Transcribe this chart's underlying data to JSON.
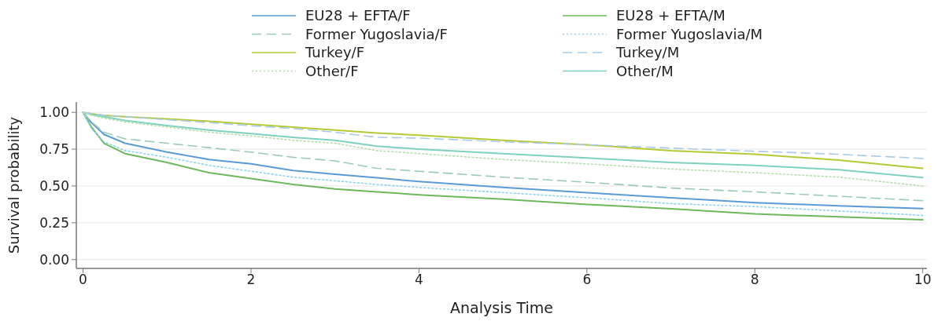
{
  "chart_data": {
    "type": "line",
    "xlabel": "Analysis Time",
    "ylabel": "Survival probability",
    "xlim": [
      -0.08,
      10.05
    ],
    "ylim": [
      -0.06,
      1.07
    ],
    "xticks": [
      0,
      2,
      4,
      6,
      8,
      10
    ],
    "yticks": [
      {
        "value": 0,
        "label": "0.00"
      },
      {
        "value": 0.25,
        "label": "0.25"
      },
      {
        "value": 0.5,
        "label": "0.50"
      },
      {
        "value": 0.75,
        "label": "0.75"
      },
      {
        "value": 1,
        "label": "1.00"
      }
    ],
    "grid": "y",
    "legend": "top",
    "x": [
      0,
      0.1,
      0.25,
      0.5,
      1,
      1.5,
      2,
      2.5,
      3,
      3.5,
      4,
      5,
      6,
      7,
      8,
      9,
      10
    ],
    "series": [
      {
        "name": "EU28 + EFTA/F",
        "color": "#5b9bd5",
        "line_style": "solid",
        "values": [
          1,
          0.93,
          0.85,
          0.79,
          0.73,
          0.68,
          0.65,
          0.605,
          0.58,
          0.555,
          0.53,
          0.49,
          0.455,
          0.42,
          0.387,
          0.365,
          0.346
        ]
      },
      {
        "name": "EU28 + EFTA/M",
        "color": "#6cb85a",
        "line_style": "solid",
        "values": [
          1,
          0.9,
          0.79,
          0.72,
          0.66,
          0.59,
          0.55,
          0.51,
          0.48,
          0.46,
          0.44,
          0.41,
          0.375,
          0.345,
          0.31,
          0.29,
          0.27
        ]
      },
      {
        "name": "Former Yugoslavia/F",
        "color": "#9dcab8",
        "line_style": "dashed",
        "values": [
          1,
          0.935,
          0.865,
          0.82,
          0.79,
          0.76,
          0.73,
          0.695,
          0.67,
          0.62,
          0.6,
          0.56,
          0.525,
          0.486,
          0.46,
          0.43,
          0.4
        ]
      },
      {
        "name": "Former Yugoslavia/M",
        "color": "#8fd3f0",
        "line_style": "dotted",
        "values": [
          1,
          0.89,
          0.8,
          0.74,
          0.695,
          0.64,
          0.6,
          0.56,
          0.535,
          0.51,
          0.49,
          0.455,
          0.42,
          0.38,
          0.36,
          0.33,
          0.3
        ]
      },
      {
        "name": "Turkey/F",
        "color": "#b5c934",
        "line_style": "solid",
        "values": [
          1,
          0.99,
          0.98,
          0.97,
          0.955,
          0.94,
          0.92,
          0.9,
          0.88,
          0.86,
          0.845,
          0.81,
          0.78,
          0.74,
          0.715,
          0.675,
          0.62
        ]
      },
      {
        "name": "Turkey/M",
        "color": "#a9cbe8",
        "line_style": "dashed",
        "values": [
          1,
          0.99,
          0.98,
          0.97,
          0.95,
          0.93,
          0.91,
          0.89,
          0.865,
          0.83,
          0.825,
          0.8,
          0.78,
          0.757,
          0.736,
          0.715,
          0.687
        ]
      },
      {
        "name": "Other/F",
        "color": "#b5dfae",
        "line_style": "dotted",
        "values": [
          1,
          0.98,
          0.96,
          0.935,
          0.9,
          0.865,
          0.84,
          0.81,
          0.79,
          0.74,
          0.72,
          0.68,
          0.65,
          0.615,
          0.59,
          0.56,
          0.5
        ]
      },
      {
        "name": "Other/M",
        "color": "#7fd1bf",
        "line_style": "solid",
        "values": [
          1,
          0.985,
          0.97,
          0.945,
          0.91,
          0.88,
          0.855,
          0.83,
          0.81,
          0.77,
          0.75,
          0.72,
          0.69,
          0.66,
          0.64,
          0.61,
          0.557
        ]
      }
    ]
  }
}
